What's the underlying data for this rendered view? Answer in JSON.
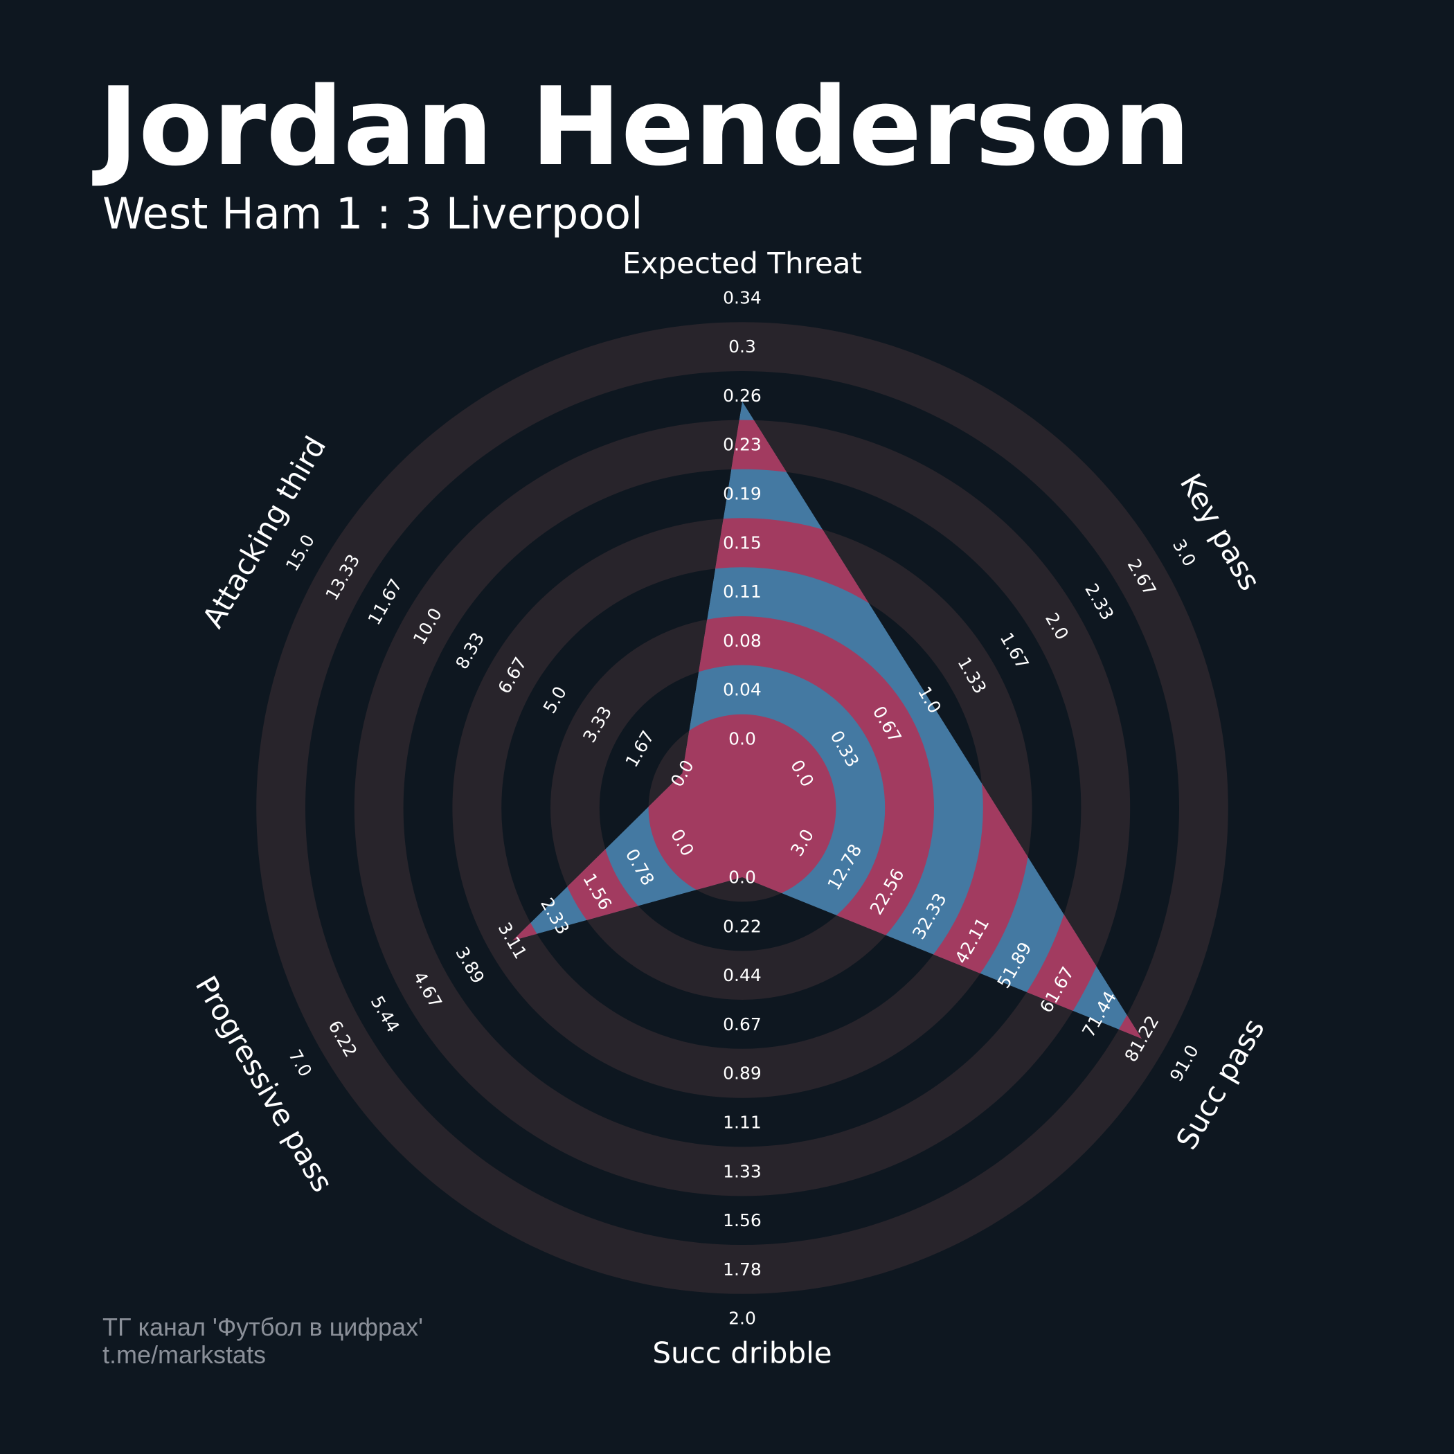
{
  "title": "Jordan Henderson",
  "subtitle": "West Ham 1 : 3 Liverpool",
  "credit": {
    "line1": "ТГ канал 'Футбол в цифрах'",
    "line2": "t.me/markstats"
  },
  "colors": {
    "background": "#0e1720",
    "ring": "#28242b",
    "polygon_blue": "#4479a2",
    "polygon_red": "#a23b60",
    "text": "#ffffff",
    "credit": "#8b9099"
  },
  "chart_data": {
    "type": "radar",
    "title": "Jordan Henderson",
    "subtitle": "West Ham 1 : 3 Liverpool",
    "grid": true,
    "params": [
      {
        "name": "Expected Threat",
        "ticks": [
          "0.0",
          "0.04",
          "0.08",
          "0.11",
          "0.15",
          "0.19",
          "0.23",
          "0.26",
          "0.3",
          "0.34"
        ],
        "min": 0.0,
        "max": 0.34,
        "value": 0.26
      },
      {
        "name": "Key pass",
        "ticks": [
          "0.0",
          "0.33",
          "0.67",
          "1.0",
          "1.33",
          "1.67",
          "2.0",
          "2.33",
          "2.67",
          "3.0"
        ],
        "min": 0.0,
        "max": 3.0,
        "value": 1.0
      },
      {
        "name": "Succ pass",
        "ticks": [
          "3.0",
          "12.78",
          "22.56",
          "32.33",
          "42.11",
          "51.89",
          "61.67",
          "71.44",
          "81.22",
          "91.0"
        ],
        "min": 3.0,
        "max": 91.0,
        "value": 81.22
      },
      {
        "name": "Succ dribble",
        "ticks": [
          "0.0",
          "0.22",
          "0.44",
          "0.67",
          "0.89",
          "1.11",
          "1.33",
          "1.56",
          "1.78",
          "2.0"
        ],
        "min": 0.0,
        "max": 2.0,
        "value": 0.0
      },
      {
        "name": "Progressive pass",
        "ticks": [
          "0.0",
          "0.78",
          "1.56",
          "2.33",
          "3.11",
          "3.89",
          "4.67",
          "5.44",
          "6.22",
          "7.0"
        ],
        "min": 0.0,
        "max": 7.0,
        "value": 3.11
      },
      {
        "name": "Attacking third",
        "ticks": [
          "0.0",
          "1.67",
          "3.33",
          "5.0",
          "6.67",
          "8.33",
          "10.0",
          "11.67",
          "13.33",
          "15.0"
        ],
        "min": 0.0,
        "max": 15.0,
        "value": 0.0
      }
    ]
  }
}
